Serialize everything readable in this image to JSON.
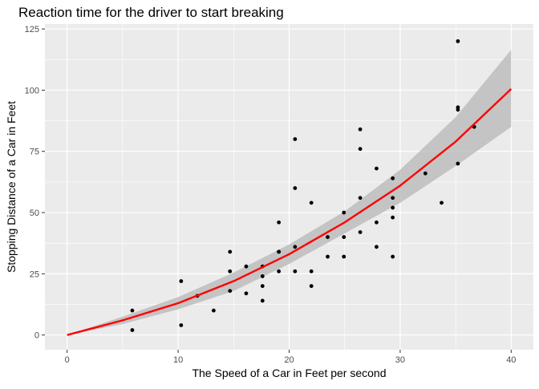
{
  "chart_data": {
    "type": "scatter",
    "title": "Reaction time for the driver to start breaking",
    "xlabel": "The Speed of a Car in Feet per second",
    "ylabel": "Stopping Distance of a Car in Feet",
    "xlim": [
      -2,
      42
    ],
    "ylim": [
      -6,
      127
    ],
    "x_ticks": [
      0,
      10,
      20,
      30,
      40
    ],
    "y_ticks": [
      0,
      25,
      50,
      75,
      100,
      125
    ],
    "grid": true,
    "colors": {
      "panel_background": "#ebebeb",
      "grid_major": "#ffffff",
      "points": "#000000",
      "fit_line": "#ff0000",
      "confidence_band": "#bdbdbd"
    },
    "series": [
      {
        "type": "scatter",
        "points": [
          [
            5.87,
            2
          ],
          [
            5.87,
            10
          ],
          [
            10.27,
            4
          ],
          [
            10.27,
            22
          ],
          [
            11.73,
            16
          ],
          [
            13.2,
            10
          ],
          [
            14.67,
            18
          ],
          [
            14.67,
            26
          ],
          [
            14.67,
            34
          ],
          [
            16.13,
            17
          ],
          [
            16.13,
            28
          ],
          [
            17.6,
            14
          ],
          [
            17.6,
            20
          ],
          [
            17.6,
            24
          ],
          [
            17.6,
            28
          ],
          [
            19.07,
            26
          ],
          [
            19.07,
            34
          ],
          [
            19.07,
            34
          ],
          [
            19.07,
            46
          ],
          [
            20.53,
            26
          ],
          [
            20.53,
            36
          ],
          [
            20.53,
            60
          ],
          [
            20.53,
            80
          ],
          [
            22.0,
            20
          ],
          [
            22.0,
            26
          ],
          [
            22.0,
            54
          ],
          [
            23.47,
            32
          ],
          [
            23.47,
            40
          ],
          [
            24.93,
            32
          ],
          [
            24.93,
            40
          ],
          [
            24.93,
            50
          ],
          [
            26.4,
            42
          ],
          [
            26.4,
            56
          ],
          [
            26.4,
            76
          ],
          [
            26.4,
            84
          ],
          [
            27.87,
            36
          ],
          [
            27.87,
            46
          ],
          [
            27.87,
            68
          ],
          [
            29.33,
            32
          ],
          [
            29.33,
            48
          ],
          [
            29.33,
            52
          ],
          [
            29.33,
            56
          ],
          [
            29.33,
            64
          ],
          [
            32.27,
            66
          ],
          [
            33.73,
            54
          ],
          [
            35.2,
            70
          ],
          [
            35.2,
            92
          ],
          [
            35.2,
            93
          ],
          [
            35.2,
            120
          ],
          [
            36.67,
            85
          ]
        ]
      },
      {
        "type": "line",
        "description_source": "fitted curve",
        "x": [
          0,
          5,
          10,
          15,
          20,
          25,
          30,
          35,
          40
        ],
        "y": [
          0,
          6,
          13,
          22,
          33,
          46,
          61,
          79,
          100.5
        ]
      },
      {
        "type": "area",
        "description_source": "confidence band",
        "x": [
          0,
          5,
          10,
          15,
          20,
          25,
          30,
          35,
          40
        ],
        "lower": [
          0,
          4.5,
          10.5,
          18,
          29,
          41.5,
          54,
          69,
          85
        ],
        "upper": [
          0,
          7.5,
          15.5,
          25.5,
          37,
          50.5,
          67.5,
          89,
          116.5
        ]
      }
    ]
  }
}
